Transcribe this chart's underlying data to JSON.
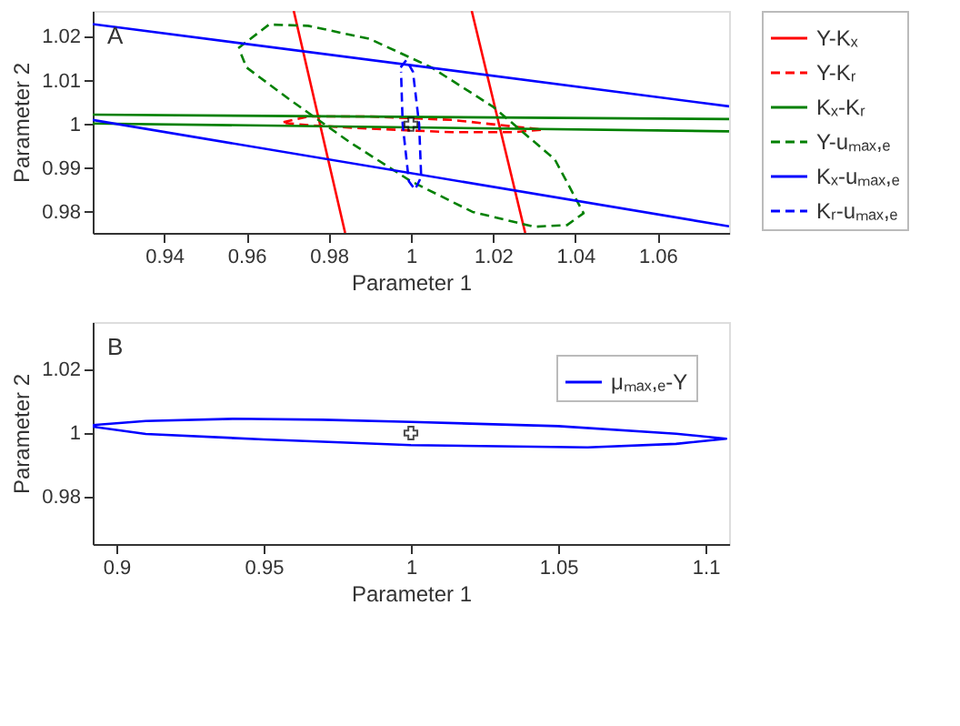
{
  "chart_data": [
    {
      "type": "line",
      "xlabel": "Parameter 1",
      "ylabel": "Parameter 2",
      "annotations": [
        "A"
      ],
      "xlim": [
        0.9226,
        1.0774
      ],
      "ylim": [
        0.9752,
        1.0259
      ],
      "xticks": [
        0.94,
        0.96,
        0.98,
        1,
        1.02,
        1.04,
        1.06
      ],
      "yticks": [
        0.98,
        0.99,
        1,
        1.01,
        1.02
      ],
      "grid": false,
      "legend": "right",
      "series": [
        {
          "name": "Y-Kₓ",
          "color": "#ff0000",
          "line_style": "solid",
          "x": [
            0.9715,
            0.984
          ],
          "values": [
            1.0259,
            0.9752
          ]
        },
        {
          "color": "#ff0000",
          "line_style": "solid",
          "x": [
            1.0148,
            1.0278
          ],
          "values": [
            1.0259,
            0.9752
          ]
        },
        {
          "name": "Y-Kᵣ",
          "color": "#ff0000",
          "line_style": "dashed",
          "x": [
            0.969,
            0.975,
            0.99,
            1.01,
            1.025,
            1.032,
            1.025,
            1.01,
            0.99,
            0.975,
            0.9695
          ],
          "values": [
            1.0005,
            1.0018,
            1.0018,
            1.001,
            0.9995,
            0.9988,
            0.9982,
            0.9982,
            0.999,
            0.9998,
            1.0003
          ]
        },
        {
          "name": "Kₓ-Kᵣ",
          "color": "#008000",
          "line_style": "solid",
          "x": [
            0.9226,
            1.0774
          ],
          "values": [
            1.0022,
            1.0012
          ]
        },
        {
          "color": "#008000",
          "line_style": "solid",
          "x": [
            0.9226,
            1.0774
          ],
          "values": [
            1.0002,
            0.9984
          ]
        },
        {
          "name": "Y-uₘₐₓ,ₑ",
          "color": "#008000",
          "line_style": "dashed",
          "x": [
            0.958,
            0.9655,
            0.975,
            0.99,
            1.005,
            1.02,
            1.035,
            1.042,
            1.038,
            1.03,
            1.015,
            1.0,
            0.985,
            0.97,
            0.96,
            0.9585
          ],
          "values": [
            1.0174,
            1.0228,
            1.0225,
            1.0195,
            1.013,
            1.004,
            0.992,
            0.9797,
            0.977,
            0.9766,
            0.98,
            0.987,
            0.996,
            1.006,
            1.013,
            1.0165
          ]
        },
        {
          "name": "Kₓ-uₘₐₓ,ₑ",
          "color": "#0000ff",
          "line_style": "solid",
          "x": [
            0.9226,
            1.0774
          ],
          "values": [
            1.0229,
            1.0041
          ]
        },
        {
          "color": "#0000ff",
          "line_style": "solid",
          "x": [
            0.9226,
            1.0774
          ],
          "values": [
            1.001,
            0.9767
          ]
        },
        {
          "name": "Kᵣ-uₘₐₓ,ₑ",
          "color": "#0000ff",
          "line_style": "dashed",
          "x": [
            0.9975,
            0.9989,
            1.0005,
            1.002,
            1.0025,
            1.001,
            0.9995,
            0.998,
            0.9976
          ],
          "values": [
            1.013,
            1.0147,
            1.012,
            1.0,
            0.988,
            0.9851,
            0.987,
            1.0,
            1.012
          ]
        },
        {
          "type": "scatter",
          "color": "#000000",
          "marker": "cross",
          "x": [
            1
          ],
          "values": [
            1
          ]
        }
      ]
    },
    {
      "type": "line",
      "xlabel": "Parameter 1",
      "ylabel": "Parameter 2",
      "annotations": [
        "B"
      ],
      "xlim": [
        0.892,
        1.108
      ],
      "ylim": [
        0.965,
        1.035
      ],
      "xticks": [
        0.9,
        0.95,
        1,
        1.05,
        1.1
      ],
      "yticks": [
        0.98,
        1,
        1.02
      ],
      "grid": false,
      "legend": "top right",
      "series": [
        {
          "name": "μₘₐₓ,ₑ-Y",
          "color": "#0000ff",
          "line_style": "solid",
          "x": [
            0.892,
            0.91,
            0.94,
            0.97,
            1.0,
            1.05,
            1.09,
            1.107,
            1.09,
            1.06,
            1.0,
            0.95,
            0.91,
            0.892
          ],
          "values": [
            1.0025,
            1.0038,
            1.0045,
            1.0042,
            1.0035,
            1.0022,
            0.9998,
            0.9982,
            0.9966,
            0.9955,
            0.9962,
            0.998,
            0.9997,
            1.002
          ]
        },
        {
          "type": "scatter",
          "color": "#000000",
          "marker": "cross",
          "x": [
            1
          ],
          "values": [
            1
          ]
        }
      ]
    }
  ]
}
